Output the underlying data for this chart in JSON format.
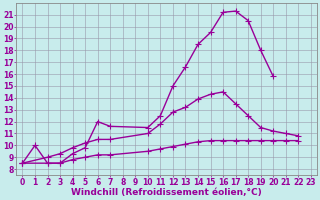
{
  "xlabel": "Windchill (Refroidissement éolien,°C)",
  "bg_color": "#c8ecec",
  "line_color": "#990099",
  "grid_color": "#9999aa",
  "xlim": [
    -0.5,
    23.5
  ],
  "ylim": [
    7.5,
    22.0
  ],
  "xticks": [
    0,
    1,
    2,
    3,
    4,
    5,
    6,
    7,
    8,
    9,
    10,
    11,
    12,
    13,
    14,
    15,
    16,
    17,
    18,
    19,
    20,
    21,
    22,
    23
  ],
  "yticks": [
    8,
    9,
    10,
    11,
    12,
    13,
    14,
    15,
    16,
    17,
    18,
    19,
    20,
    21
  ],
  "curve1_x": [
    0,
    1,
    2,
    3,
    4,
    5,
    6,
    7,
    10,
    11,
    12,
    13,
    14,
    15,
    16,
    17,
    18,
    19,
    20
  ],
  "curve1_y": [
    8.5,
    10.0,
    8.5,
    8.5,
    9.3,
    9.8,
    12.0,
    11.6,
    11.5,
    12.5,
    15.0,
    16.6,
    18.5,
    19.5,
    21.2,
    21.3,
    20.5,
    18.0,
    15.8
  ],
  "curve2_x": [
    0,
    2,
    3,
    4,
    5,
    6,
    7,
    10,
    11,
    12,
    13,
    14,
    15,
    16,
    17,
    18,
    19,
    20,
    21,
    22
  ],
  "curve2_y": [
    8.5,
    9.0,
    9.3,
    9.8,
    10.2,
    10.5,
    10.5,
    11.0,
    11.8,
    12.8,
    13.2,
    13.9,
    14.3,
    14.5,
    13.5,
    12.5,
    11.5,
    11.2,
    11.0,
    10.8
  ],
  "curve3_x": [
    0,
    2,
    3,
    4,
    5,
    6,
    7,
    10,
    11,
    12,
    13,
    14,
    15,
    16,
    17,
    18,
    19,
    20,
    21,
    22
  ],
  "curve3_y": [
    8.5,
    8.5,
    8.5,
    8.8,
    9.0,
    9.2,
    9.2,
    9.5,
    9.7,
    9.9,
    10.1,
    10.3,
    10.4,
    10.4,
    10.4,
    10.4,
    10.4,
    10.4,
    10.4,
    10.4
  ],
  "marker": "+",
  "markersize": 4,
  "linewidth": 1.0,
  "xlabel_fontsize": 6.5,
  "tick_fontsize": 5.5
}
